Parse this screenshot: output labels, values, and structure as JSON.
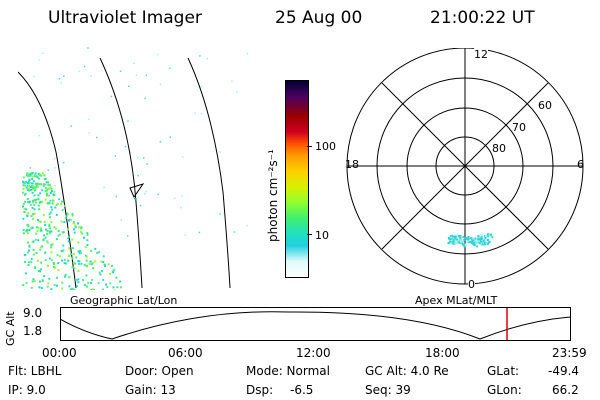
{
  "header": {
    "instrument": "Ultraviolet Imager",
    "date": "25 Aug 00",
    "time": "21:00:22 UT"
  },
  "colorbar": {
    "label": "photon cm⁻²s⁻¹",
    "ticks": [
      "100",
      "10"
    ],
    "colors": [
      "#000033",
      "#4a0060",
      "#9a0000",
      "#d00020",
      "#ff5000",
      "#ff9a00",
      "#ffd000",
      "#d8f000",
      "#90ff30",
      "#40f070",
      "#20e0c0",
      "#20d0e0",
      "#e0fafa",
      "#ffffff"
    ]
  },
  "polar": {
    "mlt_labels": {
      "top": "12",
      "right": "6",
      "bottom": "0",
      "left": "18"
    },
    "lat_labels": [
      "60",
      "70",
      "80"
    ]
  },
  "timeline": {
    "left_title": "Geographic Lat/Lon",
    "right_title": "Apex MLat/MLT",
    "axis_label": "GC Alt",
    "y_ticks": [
      "9.0",
      "1.8"
    ],
    "x_ticks": [
      "00:00",
      "06:00",
      "12:00",
      "18:00",
      "23:59"
    ],
    "marker_color": "#e00000"
  },
  "info": {
    "filter": "Flt: LBHL",
    "door": "Door: Open",
    "mode": "Mode: Normal",
    "gc_alt": "GC Alt: 4.0 Re",
    "glat_label": "GLat:",
    "glat_value": "-49.4",
    "ip": "IP: 9.0",
    "gain": "Gain: 13",
    "dsp_label": "Dsp:",
    "dsp_value": "-6.5",
    "seq": "Seq: 39",
    "glon_label": "GLon:",
    "glon_value": "66.2"
  }
}
